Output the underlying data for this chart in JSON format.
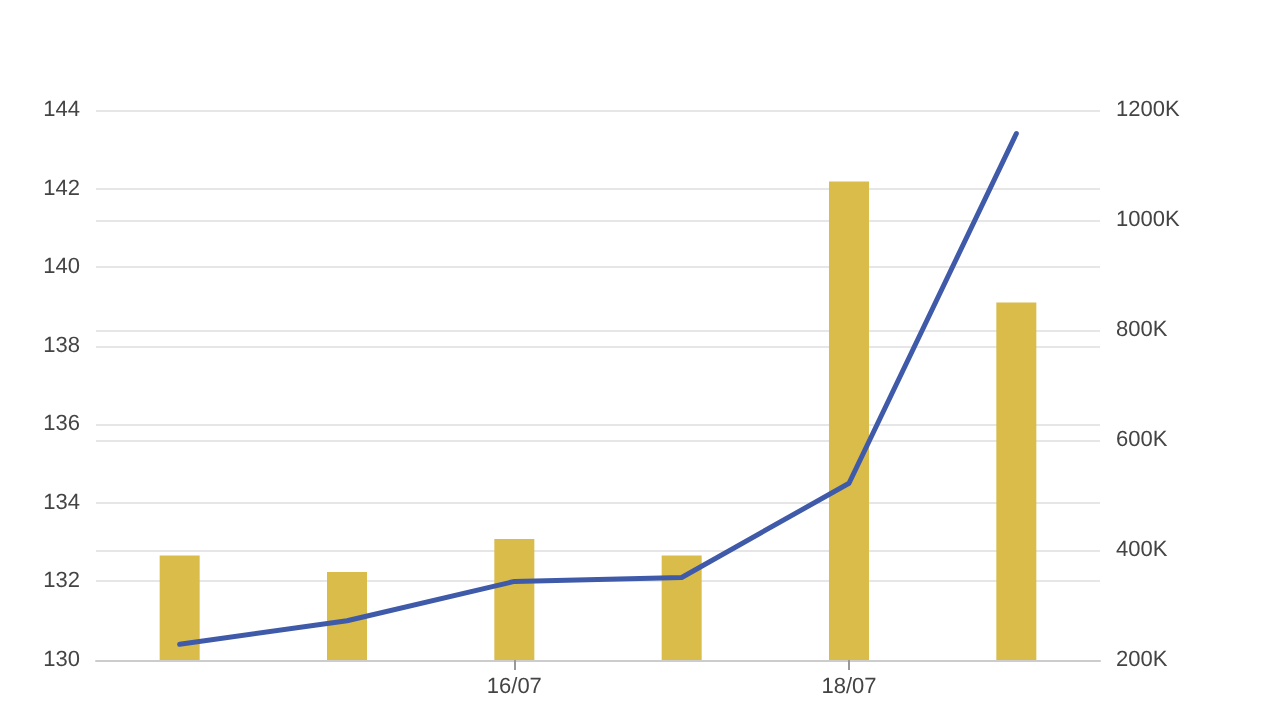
{
  "chart_data": {
    "type": "line",
    "categories": [
      null,
      null,
      "16/07",
      null,
      "18/07",
      null
    ],
    "series": [
      {
        "type": "bar",
        "axis": "y2",
        "color": "#d9bc4a",
        "values": [
          390,
          360,
          420,
          390,
          1070,
          850
        ]
      },
      {
        "color": "#3f5aa8",
        "values": [
          130.4,
          131.0,
          132.0,
          132.1,
          134.5,
          143.4
        ]
      }
    ],
    "ylim": [
      130,
      144
    ],
    "yticks": [
      130,
      132,
      134,
      136,
      138,
      140,
      142,
      144
    ],
    "y2lim": [
      200,
      1200
    ],
    "y2ticks": [
      {
        "value": 200,
        "label": "200K"
      },
      {
        "value": 400,
        "label": "400K"
      },
      {
        "value": 600,
        "label": "600K"
      },
      {
        "value": 800,
        "label": "800K"
      },
      {
        "value": 1000,
        "label": "1000K"
      },
      {
        "value": 1200,
        "label": "1200K"
      }
    ],
    "grid": true,
    "marker": "none",
    "line_style": "solid"
  }
}
